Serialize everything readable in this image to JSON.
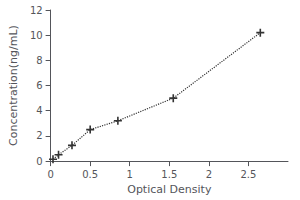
{
  "chart_data": {
    "type": "line",
    "xlabel": "Optical Density",
    "ylabel": "Concentration(ng/mL)",
    "x": [
      0.03,
      0.1,
      0.27,
      0.5,
      0.85,
      1.55,
      2.65
    ],
    "values": [
      0.15,
      0.5,
      1.25,
      2.5,
      3.2,
      5.0,
      10.2
    ],
    "xlim": [
      0,
      3
    ],
    "ylim": [
      0,
      12
    ],
    "xticks": [
      0,
      0.5,
      1,
      1.5,
      2,
      2.5
    ],
    "yticks": [
      0,
      2,
      4,
      6,
      8,
      10,
      12
    ],
    "color": "#333333",
    "marker": "+",
    "line_style": "dotted",
    "grid": false
  }
}
